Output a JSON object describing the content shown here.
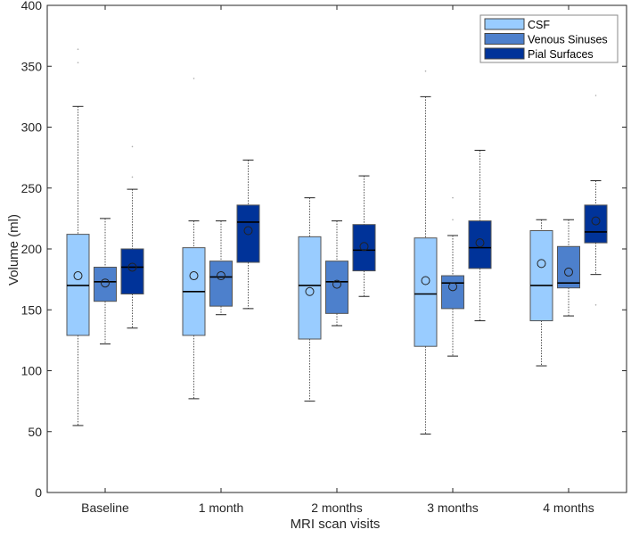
{
  "chart_data": {
    "type": "boxplot",
    "title": "",
    "xlabel": "MRI scan visits",
    "ylabel": "Volume (ml)",
    "ylim": [
      0,
      400
    ],
    "yticks": [
      0,
      50,
      100,
      150,
      200,
      250,
      300,
      350,
      400
    ],
    "grid": false,
    "legend_position": "top-right",
    "categories": [
      "Baseline",
      "1 month",
      "2 months",
      "3 months",
      "4 months"
    ],
    "series": [
      {
        "name": "CSF",
        "color": "#99ccff",
        "boxes": [
          {
            "whisker_low": 55,
            "q1": 129,
            "median": 170,
            "q3": 212,
            "whisker_high": 317,
            "mean": 178,
            "outliers": [
              353,
              364
            ]
          },
          {
            "whisker_low": 77,
            "q1": 129,
            "median": 165,
            "q3": 201,
            "whisker_high": 223,
            "mean": 178,
            "outliers": [
              340
            ]
          },
          {
            "whisker_low": 75,
            "q1": 126,
            "median": 170,
            "q3": 210,
            "whisker_high": 242,
            "mean": 165,
            "outliers": []
          },
          {
            "whisker_low": 48,
            "q1": 120,
            "median": 163,
            "q3": 209,
            "whisker_high": 325,
            "mean": 174,
            "outliers": [
              346
            ]
          },
          {
            "whisker_low": 104,
            "q1": 141,
            "median": 170,
            "q3": 215,
            "whisker_high": 224,
            "mean": 188,
            "outliers": []
          }
        ]
      },
      {
        "name": "Venous Sinuses",
        "color": "#4d80cc",
        "boxes": [
          {
            "whisker_low": 122,
            "q1": 157,
            "median": 173,
            "q3": 185,
            "whisker_high": 225,
            "mean": 172,
            "outliers": []
          },
          {
            "whisker_low": 146,
            "q1": 153,
            "median": 177,
            "q3": 190,
            "whisker_high": 223,
            "mean": 178,
            "outliers": []
          },
          {
            "whisker_low": 137,
            "q1": 147,
            "median": 173,
            "q3": 190,
            "whisker_high": 223,
            "mean": 171,
            "outliers": []
          },
          {
            "whisker_low": 112,
            "q1": 151,
            "median": 172,
            "q3": 178,
            "whisker_high": 211,
            "mean": 169,
            "outliers": [
              224,
              242
            ]
          },
          {
            "whisker_low": 145,
            "q1": 168,
            "median": 172,
            "q3": 202,
            "whisker_high": 224,
            "mean": 181,
            "outliers": []
          }
        ]
      },
      {
        "name": "Pial Surfaces",
        "color": "#003399",
        "boxes": [
          {
            "whisker_low": 135,
            "q1": 163,
            "median": 185,
            "q3": 200,
            "whisker_high": 249,
            "mean": 185,
            "outliers": [
              259,
              284
            ]
          },
          {
            "whisker_low": 151,
            "q1": 189,
            "median": 222,
            "q3": 236,
            "whisker_high": 273,
            "mean": 215,
            "outliers": []
          },
          {
            "whisker_low": 161,
            "q1": 182,
            "median": 199,
            "q3": 220,
            "whisker_high": 260,
            "mean": 202,
            "outliers": []
          },
          {
            "whisker_low": 141,
            "q1": 184,
            "median": 201,
            "q3": 223,
            "whisker_high": 281,
            "mean": 205,
            "outliers": []
          },
          {
            "whisker_low": 179,
            "q1": 205,
            "median": 214,
            "q3": 236,
            "whisker_high": 256,
            "mean": 223,
            "outliers": [
              154,
              326
            ]
          }
        ]
      }
    ]
  }
}
